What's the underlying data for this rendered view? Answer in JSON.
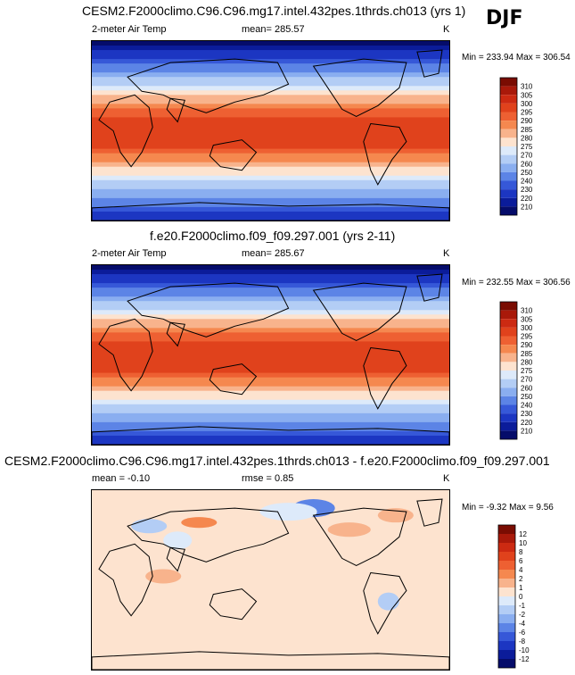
{
  "season": "DJF",
  "chart_data": [
    {
      "type": "heatmap",
      "title": "CESM2.F2000climo.C96.C96.mg17.intel.432pes.1thrds.ch013 (yrs 1)",
      "variable": "2-meter Air Temp",
      "stat_left": "mean= 285.57",
      "unit": "K",
      "minmax": "Min = 233.94 Max = 306.54",
      "min": 233.94,
      "max": 306.54,
      "mean": 285.57,
      "colorbar_levels": [
        "310",
        "305",
        "300",
        "295",
        "290",
        "285",
        "280",
        "275",
        "270",
        "260",
        "250",
        "240",
        "230",
        "220",
        "210"
      ],
      "colorbar_colors": [
        "#7a0c02",
        "#a9190a",
        "#cc2a12",
        "#e0421c",
        "#ee6032",
        "#f5884f",
        "#f8b38c",
        "#fde3cf",
        "#ddeafa",
        "#b3cdf5",
        "#8aaef0",
        "#5c84e6",
        "#3658d8",
        "#1c36c2",
        "#0b1c9a",
        "#050c6a"
      ],
      "colormap": "sequential"
    },
    {
      "type": "heatmap",
      "title": "f.e20.F2000climo.f09_f09.297.001 (yrs 2-11)",
      "variable": "2-meter Air Temp",
      "stat_left": "mean= 285.67",
      "unit": "K",
      "minmax": "Min = 232.55 Max = 306.56",
      "min": 232.55,
      "max": 306.56,
      "mean": 285.67,
      "colorbar_levels": [
        "310",
        "305",
        "300",
        "295",
        "290",
        "285",
        "280",
        "275",
        "270",
        "260",
        "250",
        "240",
        "230",
        "220",
        "210"
      ],
      "colorbar_colors": [
        "#7a0c02",
        "#a9190a",
        "#cc2a12",
        "#e0421c",
        "#ee6032",
        "#f5884f",
        "#f8b38c",
        "#fde3cf",
        "#ddeafa",
        "#b3cdf5",
        "#8aaef0",
        "#5c84e6",
        "#3658d8",
        "#1c36c2",
        "#0b1c9a",
        "#050c6a"
      ],
      "colormap": "sequential"
    },
    {
      "type": "heatmap",
      "title": "CESM2.F2000climo.C96.C96.mg17.intel.432pes.1thrds.ch013 - f.e20.F2000climo.f09_f09.297.001",
      "stat_left": "mean =  -0.10",
      "stat_mid": "rmse =   0.85",
      "unit": "K",
      "minmax": "Min =  -9.32 Max =   9.56",
      "min": -9.32,
      "max": 9.56,
      "mean": -0.1,
      "rmse": 0.85,
      "colorbar_levels": [
        "12",
        "10",
        "8",
        "6",
        "4",
        "2",
        "1",
        "0",
        "-1",
        "-2",
        "-4",
        "-6",
        "-8",
        "-10",
        "-12"
      ],
      "colorbar_colors": [
        "#7a0c02",
        "#a9190a",
        "#cc2a12",
        "#e0421c",
        "#ee6032",
        "#f5884f",
        "#f8b38c",
        "#fde3cf",
        "#ddeafa",
        "#b3cdf5",
        "#8aaef0",
        "#5c84e6",
        "#3658d8",
        "#1c36c2",
        "#0b1c9a",
        "#050c6a"
      ],
      "colormap": "diverging"
    }
  ]
}
